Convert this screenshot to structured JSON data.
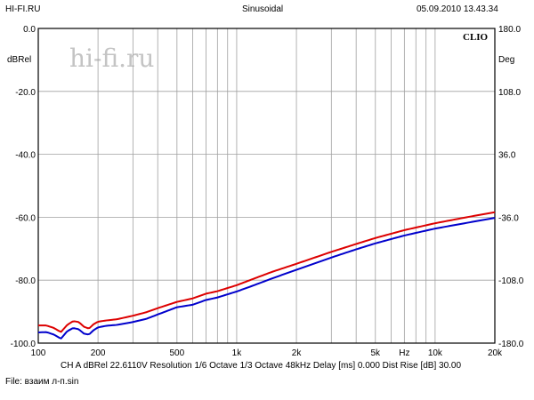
{
  "header": {
    "source": "HI-FI.RU",
    "mode": "Sinusoidal",
    "datetime": "05.09.2010 13.43.34"
  },
  "watermark": {
    "text": "hi-fi.ru"
  },
  "brand": "CLIO",
  "footer": {
    "line1": "CH A   dBRel 22.6110V  Resolution 1/6 Octave   1/3 Octave   48kHz   Delay [ms] 0.000   Dist Rise [dB] 30.00",
    "line2": "File: взаим л-п.sin"
  },
  "chart_data": {
    "type": "line",
    "x_scale": "log",
    "xlim": [
      100,
      20000
    ],
    "x_ticks": [
      {
        "value": 100,
        "label": "100"
      },
      {
        "value": 200,
        "label": "200"
      },
      {
        "value": 500,
        "label": "500"
      },
      {
        "value": 1000,
        "label": "1k"
      },
      {
        "value": 2000,
        "label": "2k"
      },
      {
        "value": 5000,
        "label": "5k"
      },
      {
        "value": 7000,
        "label": "Hz"
      },
      {
        "value": 10000,
        "label": "10k"
      },
      {
        "value": 20000,
        "label": "20k"
      }
    ],
    "ylabel_left": "dBRel",
    "ylim_left": [
      -100,
      0
    ],
    "y_ticks_left": [
      "0.0",
      "-20.0",
      "-40.0",
      "-60.0",
      "-80.0",
      "-100.0"
    ],
    "ylabel_right": "Deg",
    "ylim_right": [
      -180,
      180
    ],
    "y_ticks_right": [
      "180.0",
      "108.0",
      "36.0",
      "-36.0",
      "-108.0",
      "-180.0"
    ],
    "grid": true,
    "colors": {
      "red": "#dd0000",
      "blue": "#0000cc",
      "grid": "#a0a0a0"
    },
    "series": [
      {
        "color": "#dd0000",
        "x": [
          100,
          110,
          120,
          130,
          140,
          150,
          160,
          170,
          180,
          190,
          200,
          220,
          250,
          300,
          350,
          400,
          500,
          600,
          700,
          800,
          1000,
          1200,
          1500,
          2000,
          3000,
          4000,
          5000,
          7000,
          10000,
          15000,
          20000
        ],
        "y": [
          -94.4,
          -94.4,
          -95.2,
          -96.5,
          -94.2,
          -93.0,
          -93.3,
          -94.8,
          -95.4,
          -94.0,
          -93.2,
          -92.8,
          -92.4,
          -91.3,
          -90.2,
          -88.9,
          -86.9,
          -85.8,
          -84.3,
          -83.5,
          -81.6,
          -79.7,
          -77.4,
          -74.8,
          -71.0,
          -68.5,
          -66.6,
          -64.1,
          -61.9,
          -59.8,
          -58.4
        ]
      },
      {
        "color": "#0000cc",
        "x": [
          100,
          110,
          120,
          130,
          140,
          150,
          160,
          170,
          180,
          190,
          200,
          220,
          250,
          300,
          350,
          400,
          500,
          600,
          700,
          800,
          1000,
          1200,
          1500,
          2000,
          3000,
          4000,
          5000,
          7000,
          10000,
          15000,
          20000
        ],
        "y": [
          -96.6,
          -96.5,
          -97.3,
          -98.6,
          -96.2,
          -95.2,
          -95.6,
          -97.0,
          -97.3,
          -95.9,
          -95.0,
          -94.5,
          -94.2,
          -93.3,
          -92.3,
          -90.9,
          -88.6,
          -87.8,
          -86.3,
          -85.5,
          -83.6,
          -81.8,
          -79.5,
          -76.7,
          -72.8,
          -70.2,
          -68.3,
          -65.8,
          -63.6,
          -61.6,
          -60.2
        ]
      }
    ]
  }
}
